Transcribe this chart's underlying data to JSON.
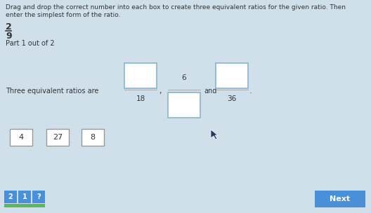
{
  "bg_color": "#cfe0ea",
  "title_text1": "Drag and drop the correct number into each box to create three equivalent ratios for the given ratio. Then",
  "title_text2": "enter the simplest form of the ratio.",
  "ratio_num": "2",
  "ratio_den": "9",
  "part_label": "Part 1 out of 2",
  "instruction": "Three equivalent ratios are",
  "ratio1_den": "18",
  "ratio2_num": "6",
  "ratio3_den": "36",
  "drag_items": [
    "4",
    "27",
    "8"
  ],
  "bottom_icons": [
    "2",
    "1",
    "?"
  ],
  "icon_colors": [
    "#4a90d9",
    "#4a90d9",
    "#4a90d9"
  ],
  "green_bar_color": "#5cb85c",
  "next_btn_color": "#4a90d9",
  "text_color": "#333333",
  "box_edge_color": "#8ab4cc",
  "drag_box_edge_color": "#999999"
}
